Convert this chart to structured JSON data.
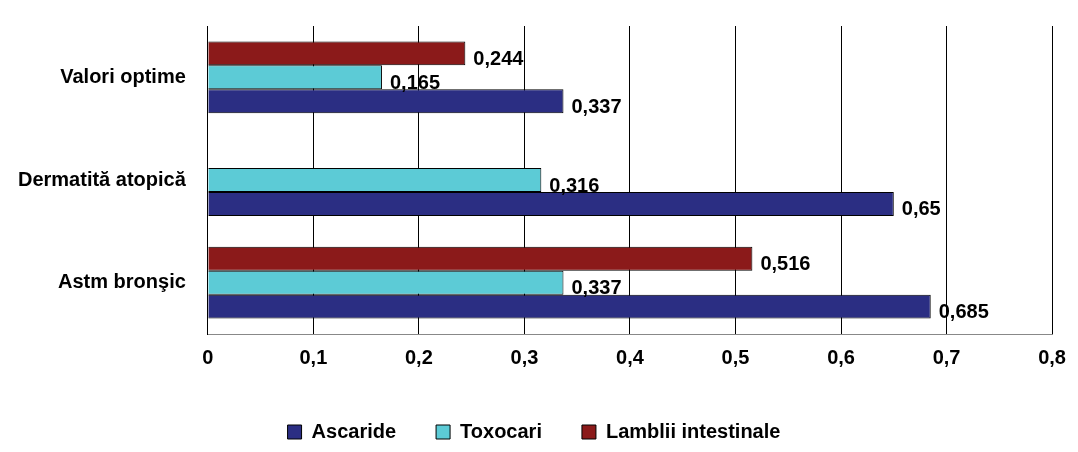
{
  "chart_data": {
    "type": "bar",
    "orientation": "horizontal",
    "categories": [
      "Valori optime",
      "Dermatită atopică",
      "Astm bronşic"
    ],
    "series": [
      {
        "name": "Ascaride",
        "color": "#2b2e83",
        "values": [
          0.337,
          0.65,
          0.685
        ],
        "value_labels": [
          "0,337",
          "0,65",
          "0,685"
        ]
      },
      {
        "name": "Toxocari",
        "color": "#5ccbd6",
        "values": [
          0.165,
          0.316,
          0.337
        ],
        "value_labels": [
          "0,165",
          "0,316",
          "0,337"
        ]
      },
      {
        "name": "Lamblii intestinale",
        "color": "#8b1a1a",
        "values": [
          0.244,
          null,
          0.516
        ],
        "value_labels": [
          "0,244",
          null,
          "0,516"
        ]
      }
    ],
    "xlim": [
      0,
      0.8
    ],
    "xticks": [
      {
        "value": 0,
        "label": "0"
      },
      {
        "value": 0.1,
        "label": "0,1"
      },
      {
        "value": 0.2,
        "label": "0,2"
      },
      {
        "value": 0.3,
        "label": "0,3"
      },
      {
        "value": 0.4,
        "label": "0,4"
      },
      {
        "value": 0.5,
        "label": "0,5"
      },
      {
        "value": 0.6,
        "label": "0,6"
      },
      {
        "value": 0.7,
        "label": "0,7"
      },
      {
        "value": 0.8,
        "label": "0,8"
      }
    ],
    "grid": "x",
    "legend": "bottom"
  }
}
